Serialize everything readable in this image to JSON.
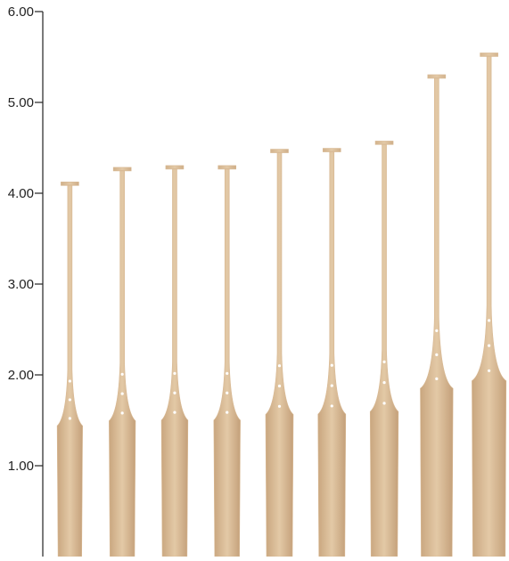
{
  "chart_data": {
    "type": "bar",
    "categories": [
      null,
      null,
      null,
      null,
      null,
      null,
      null,
      null,
      null
    ],
    "values": [
      4.11,
      4.27,
      4.29,
      4.29,
      4.47,
      4.48,
      4.56,
      5.29,
      5.53
    ],
    "color": "#d8b994",
    "ylim": [
      0,
      6
    ],
    "yticks": [
      {
        "value": 1,
        "label": "1.00"
      },
      {
        "value": 2,
        "label": "2.00"
      },
      {
        "value": 3,
        "label": "3.00"
      },
      {
        "value": 4,
        "label": "4.00"
      },
      {
        "value": 5,
        "label": "5.00"
      },
      {
        "value": 6,
        "label": "6.00"
      }
    ]
  }
}
